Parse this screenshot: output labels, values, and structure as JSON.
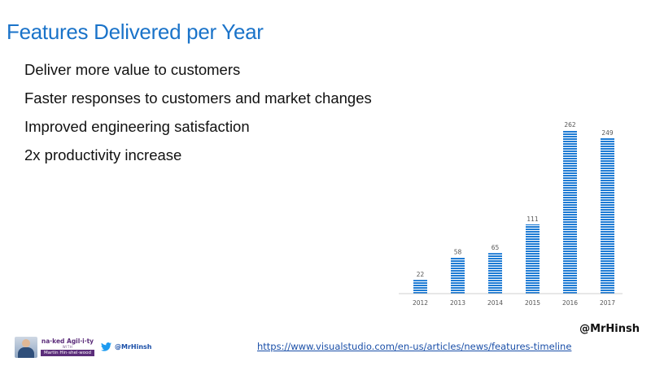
{
  "slide": {
    "title": "Features Delivered per Year",
    "bullets": [
      "Deliver more value to customers",
      "Faster responses to customers and market changes",
      "Improved engineering satisfaction",
      "2x productivity increase"
    ],
    "handle": "@MrHinsh",
    "url": "https://www.visualstudio.com/en-us/articles/news/features-timeline"
  },
  "footer": {
    "brand_name": "na·ked Agil·i·ty",
    "brand_with": "WITH",
    "brand_person": "Martin Hin·shel·wood",
    "twitter_handle": "@MrHinsh"
  },
  "chart_data": {
    "type": "bar",
    "categories": [
      "2012",
      "2013",
      "2014",
      "2015",
      "2016",
      "2017"
    ],
    "values": [
      22,
      58,
      65,
      111,
      262,
      249
    ],
    "title": "",
    "xlabel": "",
    "ylabel": "",
    "ylim": [
      0,
      262
    ],
    "grid": false,
    "data_labels": true,
    "bar_color": "#1e7bd4",
    "bar_style": "horizontal-stripes"
  },
  "colors": {
    "title": "#1a73c9",
    "bar": "#1e7bd4",
    "link": "#1a4fa8",
    "brand": "#5b2d7a"
  }
}
